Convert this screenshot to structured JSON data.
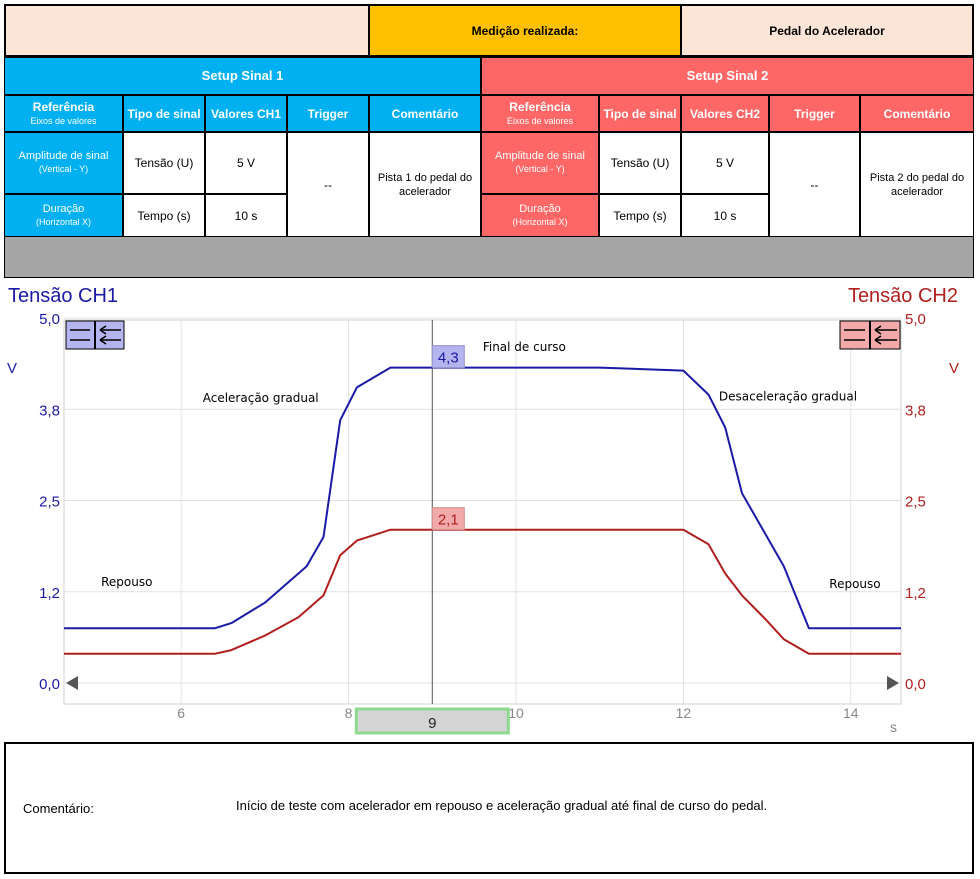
{
  "top": {
    "measurement_label": "Medição realizada:",
    "measurement_value": "Pedal do Acelerador"
  },
  "setup1": {
    "title": "Setup Sinal 1",
    "headers": {
      "ref": "Referência",
      "ref_sub": "Eixos de valores",
      "type": "Tipo de sinal",
      "values": "Valores CH1",
      "trigger": "Trigger",
      "comment": "Comentário"
    },
    "rows": {
      "amp_label": "Amplitude de sinal",
      "amp_sub": "(Vertical - Y)",
      "amp_type": "Tensão (U)",
      "amp_value": "5 V",
      "dur_label": "Duração",
      "dur_sub": "(Horizontal X)",
      "dur_type": "Tempo (s)",
      "dur_value": "10 s"
    },
    "trigger": "--",
    "comment": "Pista 1 do pedal do acelerador"
  },
  "setup2": {
    "title": "Setup Sinal 2",
    "headers": {
      "ref": "Referência",
      "ref_sub": "Eixos de valores",
      "type": "Tipo de sinal",
      "values": "Valores CH2",
      "trigger": "Trigger",
      "comment": "Comentário"
    },
    "rows": {
      "amp_label": "Amplitude de sinal",
      "amp_sub": "(Vertical - Y)",
      "amp_type": "Tensão (U)",
      "amp_value": "5 V",
      "dur_label": "Duração",
      "dur_sub": "(Horizontal X)",
      "dur_type": "Tempo (s)",
      "dur_value": "10 s"
    },
    "trigger": "--",
    "comment": "Pista 2 do pedal do acelerador"
  },
  "chart_data": {
    "type": "line",
    "left_title": "Tensão CH1",
    "right_title": "Tensão CH2",
    "left_unit": "V",
    "right_unit": "V",
    "x_unit": "s",
    "xlim": [
      4.6,
      14.6
    ],
    "ylim": [
      0,
      5
    ],
    "x_ticks": [
      6,
      8,
      10,
      12,
      14
    ],
    "x_tick_labels": [
      "6",
      "8",
      "10",
      "12",
      "14"
    ],
    "y_ticks": [
      0,
      1.25,
      2.5,
      3.75,
      5
    ],
    "y_tick_labels": [
      "0,0",
      "1,2",
      "2,5",
      "3,8",
      "5,0"
    ],
    "grid": true,
    "cursor_x": 9,
    "cursor_label": "9",
    "cursor_value_ch1": "4,3",
    "cursor_value_ch2": "2,1",
    "series": [
      {
        "name": "Tensão CH1",
        "color": "#1a1aa6",
        "x": [
          4.6,
          6.4,
          6.6,
          7.0,
          7.5,
          7.7,
          7.9,
          8.1,
          8.5,
          9.0,
          10.0,
          11.0,
          12.0,
          12.3,
          12.5,
          12.7,
          13.0,
          13.2,
          13.5,
          14.6
        ],
        "y": [
          0.75,
          0.75,
          0.82,
          1.1,
          1.6,
          2.0,
          3.6,
          4.05,
          4.32,
          4.32,
          4.32,
          4.32,
          4.28,
          3.95,
          3.5,
          2.6,
          2.0,
          1.6,
          0.75,
          0.75
        ]
      },
      {
        "name": "Tensão CH2",
        "color": "#b01e1e",
        "x": [
          4.6,
          6.4,
          6.6,
          7.0,
          7.4,
          7.7,
          7.9,
          8.1,
          8.5,
          9.0,
          10.0,
          11.0,
          12.0,
          12.3,
          12.5,
          12.7,
          13.0,
          13.2,
          13.5,
          14.6
        ],
        "y": [
          0.4,
          0.4,
          0.45,
          0.65,
          0.9,
          1.2,
          1.75,
          1.95,
          2.1,
          2.1,
          2.1,
          2.1,
          2.1,
          1.9,
          1.5,
          1.2,
          0.85,
          0.6,
          0.4,
          0.4
        ]
      }
    ],
    "annotations": [
      {
        "text": "Final de curso",
        "x": 10.1,
        "y": 4.55
      },
      {
        "text": "Aceleração gradual",
        "x": 6.95,
        "y": 3.85
      },
      {
        "text": "Desaceleração gradual",
        "x": 13.25,
        "y": 3.87
      },
      {
        "text": "Repouso",
        "x": 5.35,
        "y": 1.33
      },
      {
        "text": "Repouso",
        "x": 14.05,
        "y": 1.3
      }
    ]
  },
  "comment_section": {
    "label": "Comentário:",
    "text": "Início de teste com acelerador em repouso e aceleração gradual até final de curso do pedal."
  }
}
